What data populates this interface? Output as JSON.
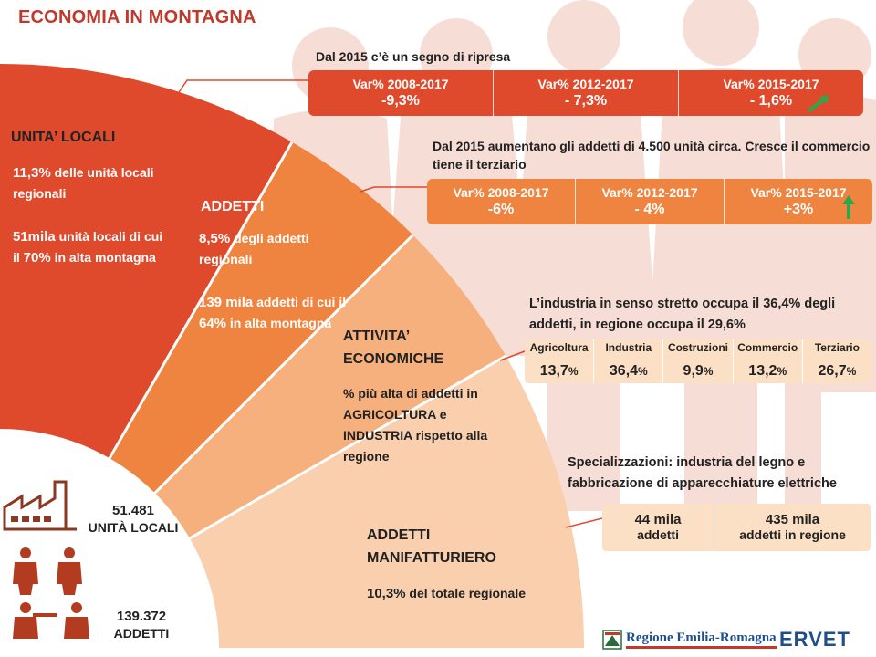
{
  "title": "ECONOMIA IN MONTAGNA",
  "colors": {
    "dark_red": "#e04a2c",
    "orange": "#ee8440",
    "light_orange": "#f5b07d",
    "pale_orange": "#f9cfae",
    "green_arrow": "#2aa84a"
  },
  "arc": {
    "unita_locali": {
      "heading": "UNITA’ LOCALI",
      "line1a": "11,3%",
      "line1b": " delle unità locali regionali",
      "line2a": "51mila",
      "line2b": " unità locali di cui il ",
      "line2c": "70%",
      "line2d": " in alta montagna"
    },
    "addetti": {
      "heading": "ADDETTI",
      "line1a": "8,5%",
      "line1b": " degli addetti regionali",
      "line2a": "139 mila",
      "line2b": " addetti di cui il ",
      "line2c": "64%",
      "line2d": " in alta montagna"
    },
    "attivita": {
      "heading1": "ATTIVITA’",
      "heading2": "ECONOMICHE",
      "body": "% più alta di addetti in AGRICOLTURA e INDUSTRIA rispetto alla regione"
    },
    "manifatturiero": {
      "heading1": "ADDETTI",
      "heading2": "MANIFATTURIERO",
      "value": "10,3%",
      "rest": " del totale regionale"
    }
  },
  "unita_band": {
    "note": "Dal 2015 c’è un segno di ripresa",
    "cells": [
      {
        "label": "Var% 2008-2017",
        "value": "-9,3%"
      },
      {
        "label": "Var% 2012-2017",
        "value": "- 7,3%"
      },
      {
        "label": "Var% 2015-2017",
        "value": "- 1,6%"
      }
    ]
  },
  "addetti_band": {
    "note": "Dal 2015 aumentano gli addetti di 4.500 unità circa. Cresce il commercio tiene il terziario",
    "cells": [
      {
        "label": "Var% 2008-2017",
        "value": "-6%"
      },
      {
        "label": "Var% 2012-2017",
        "value": "- 4%"
      },
      {
        "label": "Var% 2015-2017",
        "value": "+3%"
      }
    ]
  },
  "industria": {
    "note": "L’industria in senso stretto occupa il 36,4% degli addetti, in regione occupa il 29,6%",
    "sectors": [
      {
        "label": "Agricoltura",
        "value": "13,7",
        "unit": "%"
      },
      {
        "label": "Industria",
        "value": "36,4",
        "unit": "%"
      },
      {
        "label": "Costruzioni",
        "value": "9,9",
        "unit": "%"
      },
      {
        "label": "Commercio",
        "value": "13,2",
        "unit": "%"
      },
      {
        "label": "Terziario",
        "value": "26,7",
        "unit": "%"
      }
    ]
  },
  "specializzazioni": {
    "note": "Specializzazioni: industria del legno e fabbricazione di apparecchiature elettriche",
    "cells": [
      {
        "value": "44 mila",
        "label": "addetti"
      },
      {
        "value": "435 mila",
        "label": "addetti in regione"
      }
    ]
  },
  "stats": {
    "unita_value": "51.481",
    "unita_label": "UNITÀ LOCALI",
    "addetti_value": "139.372",
    "addetti_label": "ADDETTI"
  },
  "icons": {
    "factory": "factory-icon",
    "workers": "workers-icon",
    "trend_up": "trend-up-arrow-icon",
    "up": "up-arrow-icon"
  },
  "logos": {
    "regione": "Regione Emilia-Romagna",
    "ervet": "ERVET"
  }
}
